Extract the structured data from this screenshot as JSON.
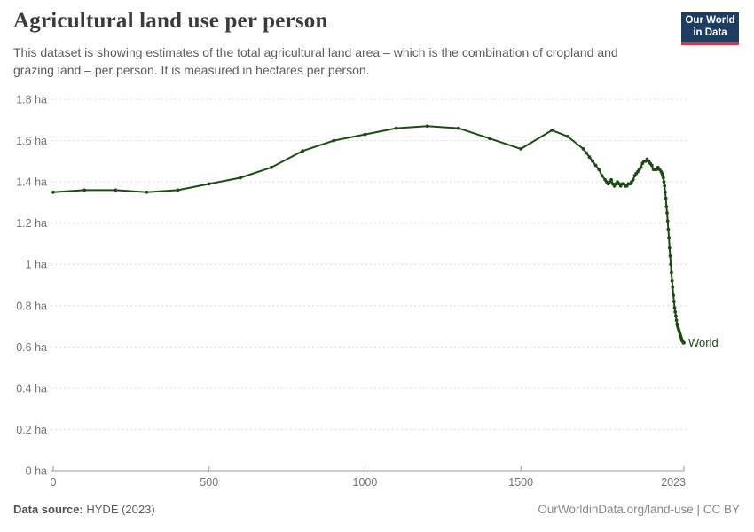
{
  "header": {
    "logo": {
      "line1": "Our World",
      "line2": "in Data"
    }
  },
  "chart_data": {
    "type": "line",
    "title": "Agricultural land use per person",
    "subtitle": "This dataset is showing estimates of the total agricultural land area – which is the combination of cropland and grazing land – per person. It is measured in hectares per person.",
    "unit": "hectares per person",
    "xlim": [
      0,
      2023
    ],
    "ylim": [
      0,
      1.8
    ],
    "grid": "dashed-horizontal",
    "legend_position": "end-of-line",
    "grid_color": "#dcdcdc",
    "axis_color": "#9a9a9a",
    "axis_label_color": "#737373",
    "x_ticks": [
      {
        "value": 0,
        "label": "0"
      },
      {
        "value": 500,
        "label": "500"
      },
      {
        "value": 1000,
        "label": "1000"
      },
      {
        "value": 1500,
        "label": "1500"
      },
      {
        "value": 2023,
        "label": "2023"
      }
    ],
    "y_ticks": [
      {
        "value": 0,
        "label": "0 ha"
      },
      {
        "value": 0.2,
        "label": "0.2 ha"
      },
      {
        "value": 0.4,
        "label": "0.4 ha"
      },
      {
        "value": 0.6,
        "label": "0.6 ha"
      },
      {
        "value": 0.8,
        "label": "0.8 ha"
      },
      {
        "value": 1,
        "label": "1 ha"
      },
      {
        "value": 1.2,
        "label": "1.2 ha"
      },
      {
        "value": 1.4,
        "label": "1.4 ha"
      },
      {
        "value": 1.6,
        "label": "1.6 ha"
      },
      {
        "value": 1.8,
        "label": "1.8 ha"
      }
    ],
    "series": [
      {
        "name": "World",
        "color": "#1d4a15",
        "points": [
          [
            0,
            1.35
          ],
          [
            100,
            1.36
          ],
          [
            200,
            1.36
          ],
          [
            300,
            1.35
          ],
          [
            400,
            1.36
          ],
          [
            500,
            1.39
          ],
          [
            600,
            1.42
          ],
          [
            700,
            1.47
          ],
          [
            800,
            1.55
          ],
          [
            900,
            1.6
          ],
          [
            1000,
            1.63
          ],
          [
            1100,
            1.66
          ],
          [
            1200,
            1.67
          ],
          [
            1300,
            1.66
          ],
          [
            1400,
            1.61
          ],
          [
            1500,
            1.56
          ],
          [
            1600,
            1.65
          ],
          [
            1650,
            1.62
          ],
          [
            1700,
            1.56
          ],
          [
            1710,
            1.54
          ],
          [
            1720,
            1.52
          ],
          [
            1730,
            1.5
          ],
          [
            1740,
            1.48
          ],
          [
            1750,
            1.46
          ],
          [
            1760,
            1.43
          ],
          [
            1770,
            1.41
          ],
          [
            1775,
            1.4
          ],
          [
            1780,
            1.39
          ],
          [
            1785,
            1.4
          ],
          [
            1790,
            1.41
          ],
          [
            1795,
            1.39
          ],
          [
            1800,
            1.38
          ],
          [
            1805,
            1.39
          ],
          [
            1810,
            1.4
          ],
          [
            1815,
            1.39
          ],
          [
            1820,
            1.38
          ],
          [
            1825,
            1.39
          ],
          [
            1830,
            1.39
          ],
          [
            1835,
            1.38
          ],
          [
            1840,
            1.38
          ],
          [
            1845,
            1.39
          ],
          [
            1850,
            1.39
          ],
          [
            1855,
            1.4
          ],
          [
            1860,
            1.41
          ],
          [
            1865,
            1.43
          ],
          [
            1870,
            1.44
          ],
          [
            1875,
            1.45
          ],
          [
            1880,
            1.46
          ],
          [
            1885,
            1.47
          ],
          [
            1890,
            1.49
          ],
          [
            1895,
            1.5
          ],
          [
            1900,
            1.5
          ],
          [
            1905,
            1.51
          ],
          [
            1910,
            1.5
          ],
          [
            1915,
            1.49
          ],
          [
            1920,
            1.48
          ],
          [
            1925,
            1.46
          ],
          [
            1930,
            1.46
          ],
          [
            1935,
            1.46
          ],
          [
            1940,
            1.47
          ],
          [
            1945,
            1.46
          ],
          [
            1950,
            1.45
          ],
          [
            1953,
            1.44
          ],
          [
            1955,
            1.43
          ],
          [
            1957,
            1.42
          ],
          [
            1959,
            1.4
          ],
          [
            1961,
            1.38
          ],
          [
            1963,
            1.35
          ],
          [
            1965,
            1.32
          ],
          [
            1967,
            1.28
          ],
          [
            1969,
            1.25
          ],
          [
            1971,
            1.21
          ],
          [
            1973,
            1.17
          ],
          [
            1975,
            1.13
          ],
          [
            1977,
            1.08
          ],
          [
            1979,
            1.04
          ],
          [
            1981,
            1.0
          ],
          [
            1983,
            0.96
          ],
          [
            1985,
            0.92
          ],
          [
            1987,
            0.89
          ],
          [
            1989,
            0.85
          ],
          [
            1991,
            0.82
          ],
          [
            1993,
            0.79
          ],
          [
            1995,
            0.77
          ],
          [
            1997,
            0.75
          ],
          [
            1999,
            0.73
          ],
          [
            2001,
            0.71
          ],
          [
            2003,
            0.7
          ],
          [
            2005,
            0.69
          ],
          [
            2007,
            0.68
          ],
          [
            2009,
            0.67
          ],
          [
            2011,
            0.66
          ],
          [
            2013,
            0.65
          ],
          [
            2015,
            0.64
          ],
          [
            2017,
            0.63
          ],
          [
            2019,
            0.63
          ],
          [
            2021,
            0.62
          ],
          [
            2023,
            0.62
          ]
        ]
      }
    ]
  },
  "footer": {
    "source_label": "Data source:",
    "source_value": "HYDE (2023)",
    "license": "OurWorldinData.org/land-use | CC BY"
  },
  "colors": {
    "series_world": "#1d4a15",
    "logo_background": "#1d3d63",
    "logo_stripe": "#d93644",
    "title_text": "#3b3b3b",
    "subtitle_text": "#5b5b5b",
    "gridline": "#dcdcdc",
    "axis_labels": "#737373"
  }
}
